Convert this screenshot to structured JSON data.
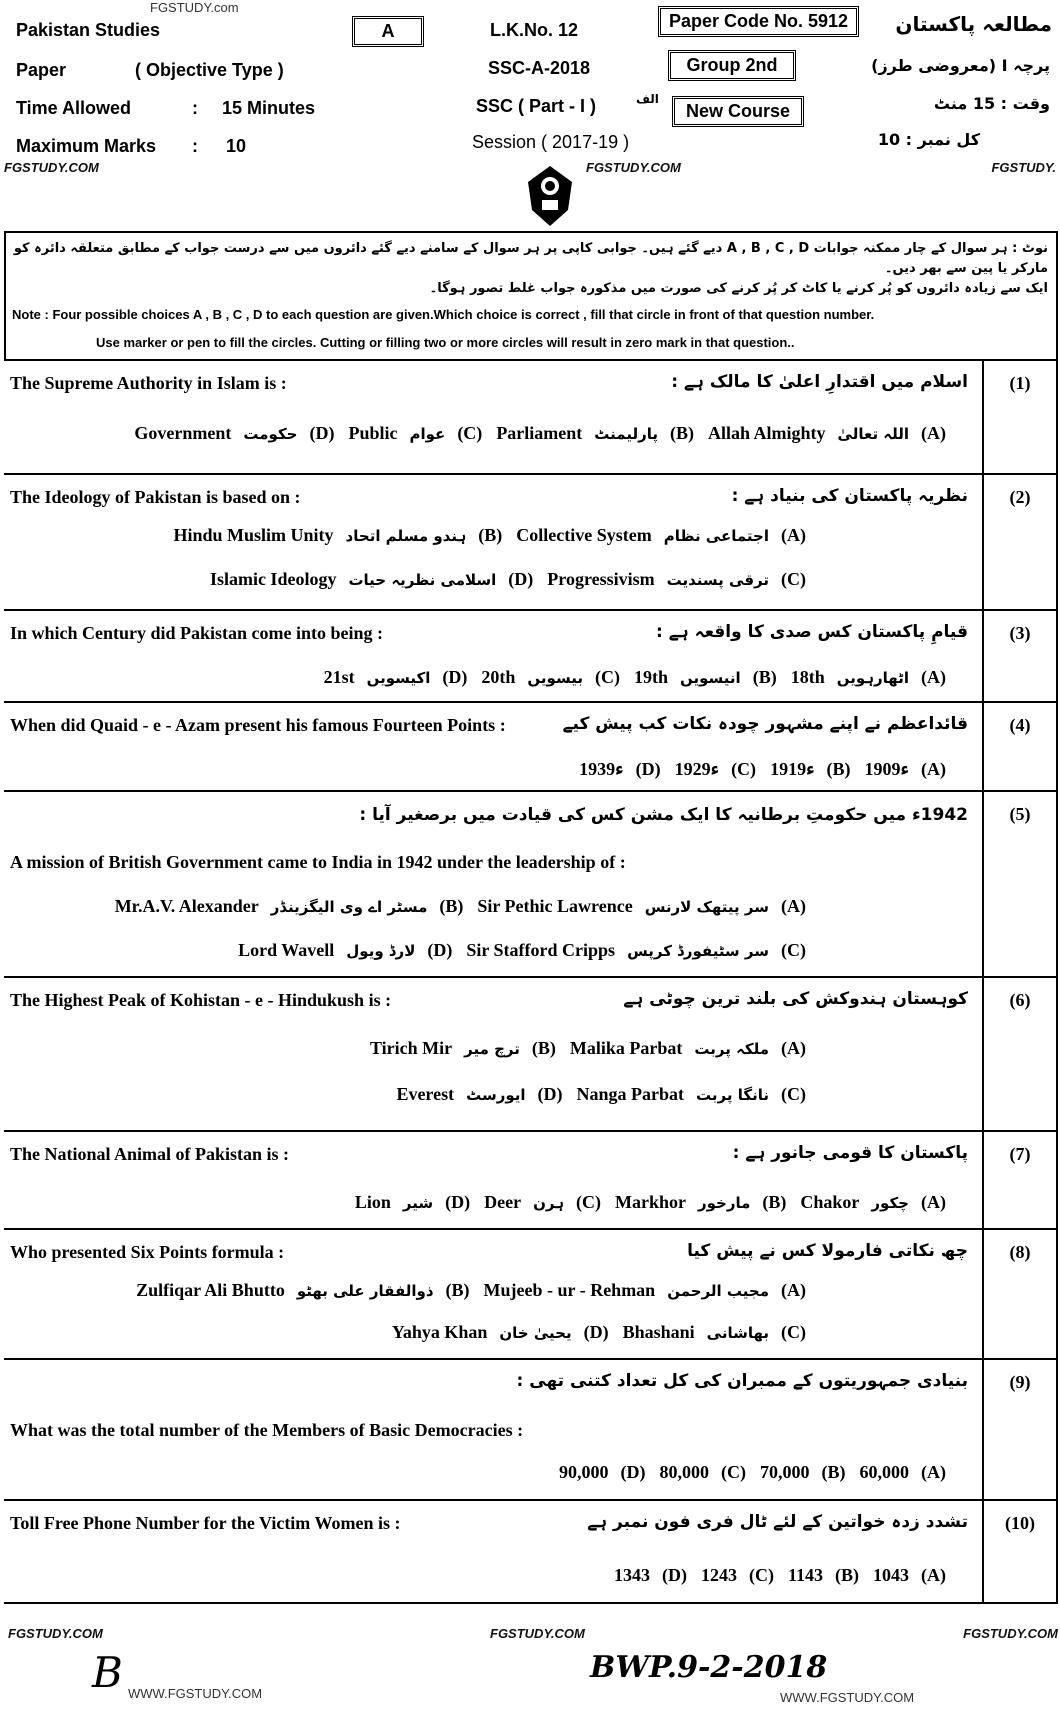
{
  "header": {
    "watermark_top": "FGSTUDY.com",
    "subject_en": "Pakistan Studies",
    "version": "A",
    "lk_no": "L.K.No. 12",
    "paper_code": "Paper Code No. 5912",
    "subject_ur": "مطالعہ پاکستان",
    "paper_label": "Paper",
    "paper_type": "( Objective Type )",
    "exam": "SSC-A-2018",
    "group": "Group 2nd",
    "paper_type_ur": "پرچہ I (معروضی طرز)",
    "time_label": "Time Allowed",
    "time_sep": ":",
    "time_value": "15 Minutes",
    "part": "SSC ( Part - I )",
    "part_ur": "الف",
    "course": "New Course",
    "time_ur": "وقت : 15 منٹ",
    "marks_label": "Maximum Marks",
    "marks_sep": ":",
    "marks_value": "10",
    "session": "Session ( 2017-19 )",
    "marks_ur": "کل نمبر : 10",
    "wm_left": "FGSTUDY.COM",
    "wm_mid": "FGSTUDY.COM",
    "wm_right": "FGSTUDY."
  },
  "note": {
    "ur_line1": "نوٹ : ہر سوال کے چار ممکنہ جوابات A , B , C , D دیے گئے ہیں۔ جوابی کاپی پر ہر سوال کے سامنے دیے گئے دائروں میں سے درست جواب کے مطابق متعلقہ دائرہ کو مارکر یا پین سے بھر دیں۔",
    "ur_line2": "ایک سے زیادہ دائروں کو پُر کرنے یا کاٹ کر پُر کرنے کی صورت میں مذکورہ جواب غلط تصور ہوگا۔",
    "en_line1": "Note : Four possible choices A , B , C , D to each question are given.Which choice is correct , fill that circle in front of that question number.",
    "en_line2": "Use marker or pen to fill the circles. Cutting or filling two or more circles will result in zero mark in that question.."
  },
  "questions": [
    {
      "num": "(1)",
      "en": "The Supreme Authority in Islam is :",
      "ur": "اسلام میں اقتدارِ اعلیٰ کا مالک ہے :",
      "rows": [
        [
          [
            "Government",
            "حکومت",
            "(D)"
          ],
          [
            "Public",
            "عوام",
            "(C)"
          ],
          [
            "Parliament",
            "پارلیمنٹ",
            "(B)"
          ],
          [
            "Allah Almighty",
            "اللہ تعالیٰ",
            "(A)"
          ]
        ]
      ]
    },
    {
      "num": "(2)",
      "en": "The Ideology of Pakistan is based on :",
      "ur": "نظریہ پاکستان کی بنیاد ہے :",
      "rows": [
        [
          [
            "Hindu Muslim Unity",
            "ہندو مسلم اتحاد",
            "(B)"
          ],
          [
            "Collective System",
            "اجتماعی نظام",
            "(A)"
          ]
        ],
        [
          [
            "Islamic Ideology",
            "اسلامی نظریہ حیات",
            "(D)"
          ],
          [
            "Progressivism",
            "ترقی پسندیت",
            "(C)"
          ]
        ]
      ]
    },
    {
      "num": "(3)",
      "en": "In which Century did Pakistan come into being :",
      "ur": "قیامِ پاکستان کس صدی کا واقعہ ہے :",
      "rows": [
        [
          [
            "21st",
            "اکیسویں",
            "(D)"
          ],
          [
            "20th",
            "بیسویں",
            "(C)"
          ],
          [
            "19th",
            "انیسویں",
            "(B)"
          ],
          [
            "18th",
            "اٹھارہویں",
            "(A)"
          ]
        ]
      ]
    },
    {
      "num": "(4)",
      "en": "When did Quaid - e - Azam present his famous Fourteen Points :",
      "ur": "قائداعظم نے اپنے مشہور چودہ نکات کب پیش کیے",
      "rows": [
        [
          [
            "ء1939",
            "",
            "(D)"
          ],
          [
            "ء1929",
            "",
            "(C)"
          ],
          [
            "ء1919",
            "",
            "(B)"
          ],
          [
            "ء1909",
            "",
            "(A)"
          ]
        ]
      ]
    },
    {
      "num": "(5)",
      "en": "A mission of British Government came to India in 1942 under the leadership of :",
      "ur": "1942ء میں حکومتِ برطانیہ کا ایک مشن کس کی قیادت میں برصغیر آیا :",
      "rows": [
        [
          [
            "Mr.A.V. Alexander",
            "مسٹر اے وی الیگزینڈر",
            "(B)"
          ],
          [
            "Sir Pethic Lawrence",
            "سر پیتھک لارنس",
            "(A)"
          ]
        ],
        [
          [
            "Lord Wavell",
            "لارڈ ویول",
            "(D)"
          ],
          [
            "Sir Stafford Cripps",
            "سر سٹیفورڈ کرپس",
            "(C)"
          ]
        ]
      ]
    },
    {
      "num": "(6)",
      "en": "The Highest Peak of Kohistan - e - Hindukush is :",
      "ur": "کوہستان ہندوکش کی بلند ترین چوٹی ہے",
      "rows": [
        [
          [
            "Tirich Mir",
            "ترچ میر",
            "(B)"
          ],
          [
            "Malika Parbat",
            "ملکہ پربت",
            "(A)"
          ]
        ],
        [
          [
            "Everest",
            "ایورسٹ",
            "(D)"
          ],
          [
            "Nanga Parbat",
            "نانگا پربت",
            "(C)"
          ]
        ]
      ]
    },
    {
      "num": "(7)",
      "en": "The National Animal of Pakistan is :",
      "ur": "پاکستان کا قومی جانور ہے :",
      "rows": [
        [
          [
            "Lion",
            "شیر",
            "(D)"
          ],
          [
            "Deer",
            "ہرن",
            "(C)"
          ],
          [
            "Markhor",
            "مارخور",
            "(B)"
          ],
          [
            "Chakor",
            "چکور",
            "(A)"
          ]
        ]
      ]
    },
    {
      "num": "(8)",
      "en": "Who presented Six Points formula :",
      "ur": "چھ نکاتی فارمولا کس نے پیش کیا",
      "rows": [
        [
          [
            "Zulfiqar Ali Bhutto",
            "ذوالفقار علی بھٹو",
            "(B)"
          ],
          [
            "Mujeeb - ur - Rehman",
            "مجیب الرحمن",
            "(A)"
          ]
        ],
        [
          [
            "Yahya Khan",
            "یحییٰ خان",
            "(D)"
          ],
          [
            "Bhashani",
            "بھاشانی",
            "(C)"
          ]
        ]
      ]
    },
    {
      "num": "(9)",
      "en": "What was the total number of the Members of Basic Democracies :",
      "ur": "بنیادی جمہوریتوں کے ممبران کی کل تعداد کتنی تھی :",
      "rows": [
        [
          [
            "90,000",
            "",
            "(D)"
          ],
          [
            "80,000",
            "",
            "(C)"
          ],
          [
            "70,000",
            "",
            "(B)"
          ],
          [
            "60,000",
            "",
            "(A)"
          ]
        ]
      ]
    },
    {
      "num": "(10)",
      "en": "Toll Free Phone Number for the Victim Women is :",
      "ur": "تشدد زدہ خواتین کے لئے ٹال فری فون نمبر ہے",
      "rows": [
        [
          [
            "1343",
            "",
            "(D)"
          ],
          [
            "1243",
            "",
            "(C)"
          ],
          [
            "1143",
            "",
            "(B)"
          ],
          [
            "1043",
            "",
            "(A)"
          ]
        ]
      ]
    }
  ],
  "footer": {
    "wm_left": "FGSTUDY.COM",
    "wm_mid": "FGSTUDY.COM",
    "wm_right": "FGSTUDY.COM",
    "site_left": "WWW.FGSTUDY.COM",
    "site_right": "WWW.FGSTUDY.COM",
    "handwritten_letter": "B",
    "handwritten_code": "BWP.9-2-2018"
  }
}
